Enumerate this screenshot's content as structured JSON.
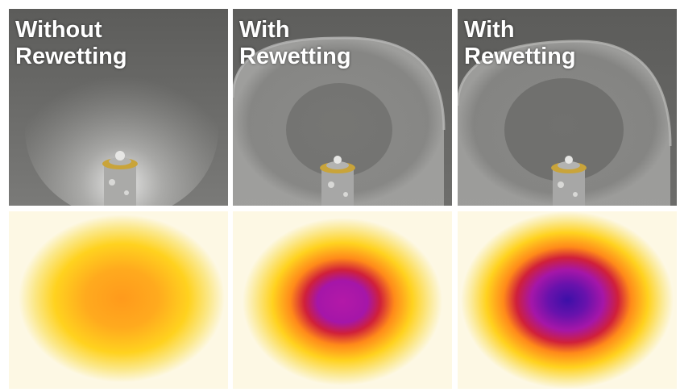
{
  "panels": [
    {
      "caption": "Without\nRewetting",
      "rewetting": false,
      "spray_intensity": 0.45,
      "spot_intensity": 0.3
    },
    {
      "caption": "With\nRewetting",
      "rewetting": true,
      "spray_intensity": 0.25,
      "spot_intensity": 0.7
    },
    {
      "caption": "With\nRewetting",
      "rewetting": true,
      "spray_intensity": 0.2,
      "spot_intensity": 1.0
    }
  ],
  "colors": {
    "photo_background": "#6f6f6d",
    "heatmap_background": "#fdf8e4",
    "heat_yellow": "#ffd21f",
    "heat_orange": "#ff8a1a",
    "heat_red": "#d0203a",
    "heat_magenta": "#a516a8",
    "heat_purple": "#3c10a8",
    "nozzle_ring": "#c9a43a"
  }
}
